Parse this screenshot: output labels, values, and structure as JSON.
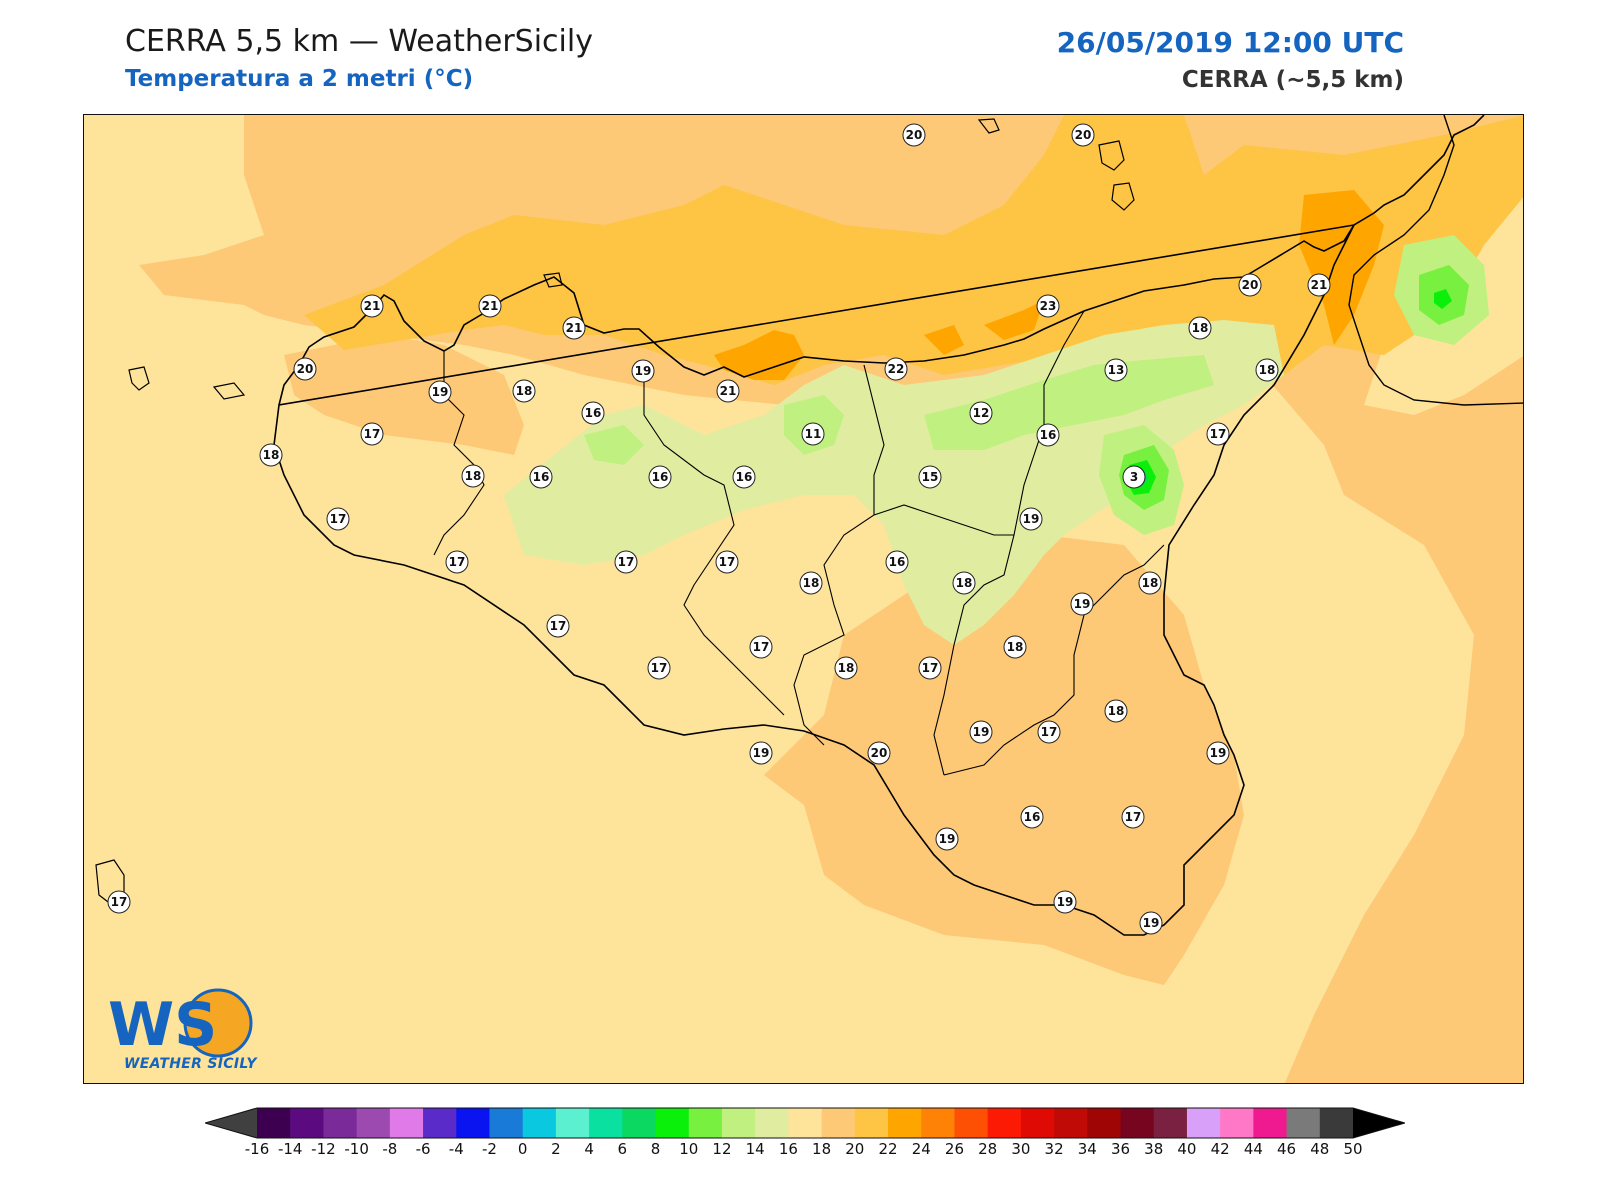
{
  "header": {
    "title": "CERRA 5,5 km — WeatherSicily",
    "subtitle": "Temperatura a 2 metri (°C)",
    "datetime": "26/05/2019 12:00 UTC",
    "model": "CERRA (~5,5 km)"
  },
  "logo": {
    "text": "WEATHER SICILY",
    "letters": "WS"
  },
  "colorbar": {
    "labels": [
      "-16",
      "-14",
      "-12",
      "-10",
      "-8",
      "-6",
      "-4",
      "-2",
      "0",
      "2",
      "4",
      "6",
      "8",
      "10",
      "12",
      "14",
      "16",
      "18",
      "20",
      "22",
      "24",
      "26",
      "28",
      "30",
      "32",
      "34",
      "36",
      "38",
      "40",
      "42",
      "44",
      "46",
      "48",
      "50"
    ],
    "colors": [
      "#3d0050",
      "#5c0a80",
      "#7a2a99",
      "#9c4ab0",
      "#e07ae8",
      "#5a2bc8",
      "#0a14f0",
      "#1a7ad8",
      "#0ac8e0",
      "#5af0d0",
      "#0ae0a0",
      "#0ad860",
      "#0af00a",
      "#78f040",
      "#c0f080",
      "#e0eca0",
      "#fee39b",
      "#fdc976",
      "#fec443",
      "#fea500",
      "#fd8205",
      "#fd5005",
      "#fd1a05",
      "#e00a05",
      "#c00a05",
      "#a00505",
      "#780520",
      "#7a2040",
      "#d8a0f8",
      "#ff78c8",
      "#f01a90",
      "#7a7a7a",
      "#3a3a3a"
    ],
    "under_color": "#404040",
    "over_color": "#000000"
  },
  "stations": [
    {
      "v": "20"
    },
    {
      "v": "20"
    },
    {
      "v": "21"
    },
    {
      "v": "21"
    },
    {
      "v": "21"
    },
    {
      "v": "20"
    },
    {
      "v": "21"
    },
    {
      "v": "23"
    },
    {
      "v": "18"
    },
    {
      "v": "20"
    },
    {
      "v": "19"
    },
    {
      "v": "18"
    },
    {
      "v": "19"
    },
    {
      "v": "21"
    },
    {
      "v": "22"
    },
    {
      "v": "13"
    },
    {
      "v": "18"
    },
    {
      "v": "17"
    },
    {
      "v": "16"
    },
    {
      "v": "11"
    },
    {
      "v": "12"
    },
    {
      "v": "16"
    },
    {
      "v": "17"
    },
    {
      "v": "18"
    },
    {
      "v": "18"
    },
    {
      "v": "16"
    },
    {
      "v": "16"
    },
    {
      "v": "16"
    },
    {
      "v": "15"
    },
    {
      "v": "3"
    },
    {
      "v": "17"
    },
    {
      "v": "19"
    },
    {
      "v": "17"
    },
    {
      "v": "17"
    },
    {
      "v": "17"
    },
    {
      "v": "18"
    },
    {
      "v": "16"
    },
    {
      "v": "18"
    },
    {
      "v": "18"
    },
    {
      "v": "19"
    },
    {
      "v": "17"
    },
    {
      "v": "17"
    },
    {
      "v": "17"
    },
    {
      "v": "18"
    },
    {
      "v": "17"
    },
    {
      "v": "18"
    },
    {
      "v": "18"
    },
    {
      "v": "19"
    },
    {
      "v": "19"
    },
    {
      "v": "20"
    },
    {
      "v": "17"
    },
    {
      "v": "19"
    },
    {
      "v": "19"
    },
    {
      "v": "16"
    },
    {
      "v": "17"
    },
    {
      "v": "19"
    },
    {
      "v": "19"
    },
    {
      "v": "17"
    }
  ]
}
